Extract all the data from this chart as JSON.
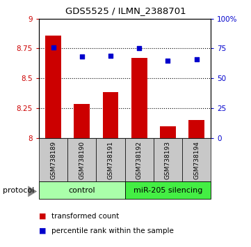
{
  "title": "GDS5525 / ILMN_2388701",
  "samples": [
    "GSM738189",
    "GSM738190",
    "GSM738191",
    "GSM738192",
    "GSM738193",
    "GSM738194"
  ],
  "bar_values": [
    8.855,
    8.285,
    8.385,
    8.67,
    8.1,
    8.155
  ],
  "dot_values": [
    76,
    68,
    69,
    75,
    65,
    66
  ],
  "ymin": 8.0,
  "ymax": 9.0,
  "yticks": [
    8.0,
    8.25,
    8.5,
    8.75,
    9.0
  ],
  "ytick_labels": [
    "8",
    "8.25",
    "8.5",
    "8.75",
    "9"
  ],
  "y2min": 0,
  "y2max": 100,
  "y2ticks": [
    0,
    25,
    50,
    75,
    100
  ],
  "y2tick_labels": [
    "0",
    "25",
    "50",
    "75",
    "100%"
  ],
  "grid_lines": [
    8.25,
    8.5,
    8.75
  ],
  "bar_color": "#cc0000",
  "dot_color": "#0000cc",
  "control_label": "control",
  "treatment_label": "miR-205 silencing",
  "protocol_label": "protocol",
  "legend_bar_label": "transformed count",
  "legend_dot_label": "percentile rank within the sample",
  "control_color": "#aaffaa",
  "treatment_color": "#44ee44",
  "sample_box_color": "#c8c8c8",
  "n_control": 3,
  "n_treatment": 3
}
